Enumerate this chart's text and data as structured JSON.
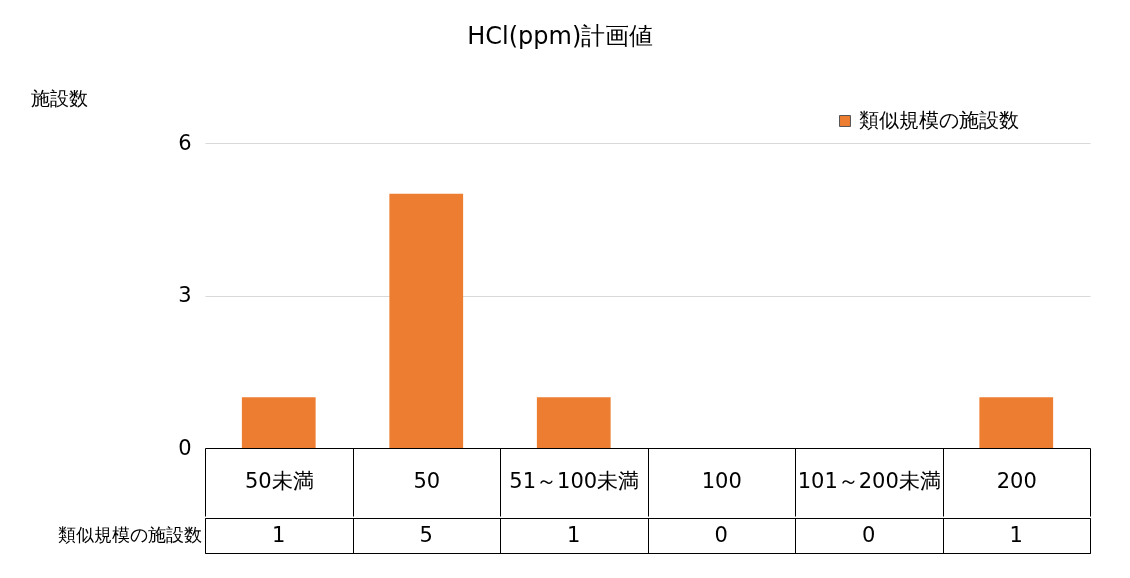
{
  "chart_data": {
    "type": "bar",
    "title": "HCl(ppm)計画値",
    "ylabel": "施設数",
    "categories": [
      "50未満",
      "50",
      "51～100未満",
      "100",
      "101～200未満",
      "200"
    ],
    "series": [
      {
        "name": "類似規模の施設数",
        "color": "#ed7d31",
        "values": [
          1,
          5,
          1,
          0,
          0,
          1
        ]
      }
    ],
    "ylim": [
      0,
      6
    ],
    "yticks": [
      0,
      3,
      6
    ],
    "grid": "y",
    "legend": "top right",
    "data_labels": true
  }
}
